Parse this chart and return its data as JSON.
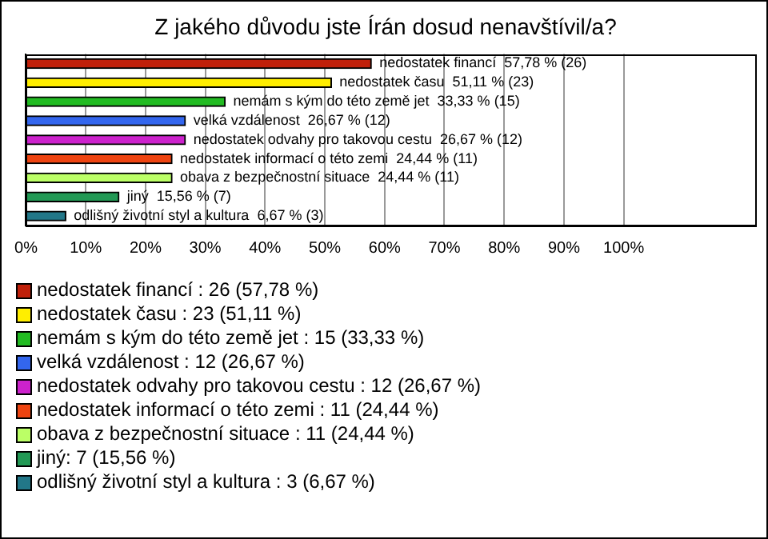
{
  "chart_data": {
    "type": "bar",
    "orientation": "horizontal",
    "title": "Z jakého důvodu jste Írán dosud nenavštívil/a?",
    "categories": [
      "nedostatek financí",
      "nedostatek času",
      "nemám s kým do této země jet",
      "velká vzdálenost",
      "nedostatek odvahy pro takovou cestu",
      "nedostatek informací o této zemi",
      "obava z bezpečnostní situace",
      "jiný",
      "odlišný životní styl a kultura"
    ],
    "values": [
      57.78,
      51.11,
      33.33,
      26.67,
      26.67,
      24.44,
      24.44,
      15.56,
      6.67
    ],
    "colors": [
      "#c0200a",
      "#ffee00",
      "#22bb22",
      "#3366ee",
      "#cc22cc",
      "#ee4411",
      "#bbff66",
      "#229955",
      "#227788"
    ],
    "value_labels": [
      "57,78 % (26)",
      "51,11 % (23)",
      "33,33 % (15)",
      "26,67 % (12)",
      "26,67 % (12)",
      "24,44 % (11)",
      "24,44 % (11)",
      "15,56 % (7)",
      "6,67 % (3)"
    ],
    "xlim": [
      0,
      122
    ],
    "xticks": [
      {
        "value": 0,
        "label": "0%"
      },
      {
        "value": 10,
        "label": "10%"
      },
      {
        "value": 20,
        "label": "20%"
      },
      {
        "value": 30,
        "label": "30%"
      },
      {
        "value": 40,
        "label": "40%"
      },
      {
        "value": 50,
        "label": "50%"
      },
      {
        "value": 60,
        "label": "60%"
      },
      {
        "value": 70,
        "label": "70%"
      },
      {
        "value": 80,
        "label": "80%"
      },
      {
        "value": 90,
        "label": "90%"
      },
      {
        "value": 100,
        "label": "100%"
      }
    ],
    "grid": "x",
    "tick_labels": "x",
    "annotations": [
      "nedostatek financí : 26 (57,78 %)",
      "nedostatek času : 23 (51,11 %)",
      "nemám s kým do této země jet : 15 (33,33 %)",
      "velká vzdálenost : 12 (26,67 %)",
      "nedostatek odvahy pro takovou cestu : 12 (26,67 %)",
      "nedostatek informací o této zemi : 11 (24,44 %)",
      "obava z bezpečnostní situace : 11 (24,44 %)",
      "jiný: 7 (15,56 %)",
      "odlišný životní styl a kultura : 3 (6,67 %)"
    ]
  }
}
